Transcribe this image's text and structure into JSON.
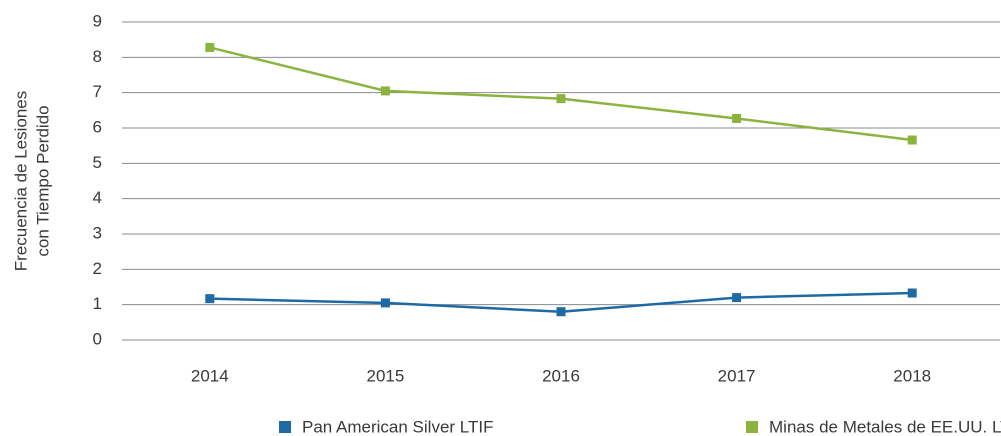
{
  "chart_data": {
    "type": "line",
    "ylabel": [
      "Frecuencia de Lesiones",
      "con Tiempo Perdido"
    ],
    "categories": [
      "2014",
      "2015",
      "2016",
      "2017",
      "2018"
    ],
    "series": [
      {
        "name": "Pan American Silver LTIF",
        "color": "#1f6aa5",
        "values": [
          1.17,
          1.05,
          0.8,
          1.2,
          1.33
        ]
      },
      {
        "name": "Minas de Metales de EE.UU. LTIF",
        "color": "#8db33f",
        "values": [
          8.28,
          7.05,
          6.83,
          6.27,
          5.66
        ]
      }
    ],
    "ylim": [
      0,
      9
    ],
    "yticks": [
      0,
      1,
      2,
      3,
      4,
      5,
      6,
      7,
      8,
      9
    ],
    "grid": true
  }
}
